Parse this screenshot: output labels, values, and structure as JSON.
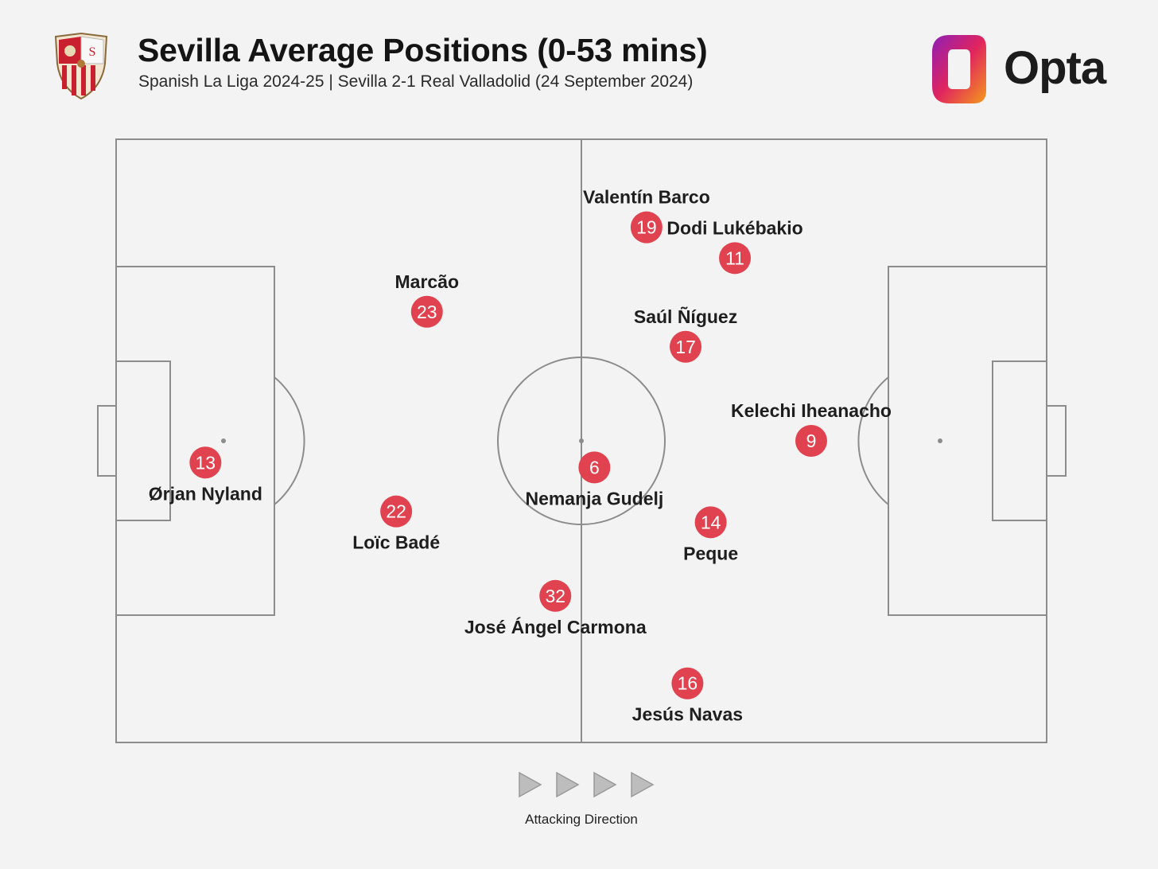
{
  "header": {
    "title": "Sevilla Average Positions (0-53 mins)",
    "subtitle": "Spanish La Liga 2024-25 | Sevilla 2-1 Real Valladolid (24 September 2024)",
    "brand": "Opta",
    "crest_icon": "sevilla-crest-icon"
  },
  "legend": {
    "label": "Attacking Direction"
  },
  "colors": {
    "background": "#f3f3f3",
    "pitch_lines": "#8c8c8c",
    "marker": "#e0434f",
    "marker_text": "#ffffff",
    "label": "#1e1e1e",
    "arrows": "#bdbdbd"
  },
  "chart_data": {
    "type": "scatter",
    "title": "Sevilla Average Positions (0-53 mins)",
    "subtitle": "Spanish La Liga 2024-25 | Sevilla 2-1 Real Valladolid (24 September 2024)",
    "xlim": [
      0,
      100
    ],
    "ylim": [
      0,
      100
    ],
    "attacking_direction": "left-to-right",
    "points": [
      {
        "number": "19",
        "name": "Valentín Barco",
        "x": 57.0,
        "y": 85.4,
        "label_pos": "above"
      },
      {
        "number": "11",
        "name": "Dodi Lukébakio",
        "x": 66.5,
        "y": 80.3,
        "label_pos": "above"
      },
      {
        "number": "23",
        "name": "Marcão",
        "x": 33.4,
        "y": 71.4,
        "label_pos": "above"
      },
      {
        "number": "17",
        "name": "Saúl Ñíguez",
        "x": 61.2,
        "y": 65.6,
        "label_pos": "above"
      },
      {
        "number": "9",
        "name": "Kelechi Iheanacho",
        "x": 74.7,
        "y": 50.0,
        "label_pos": "above"
      },
      {
        "number": "13",
        "name": "Ørjan Nyland",
        "x": 9.6,
        "y": 46.4,
        "label_pos": "below"
      },
      {
        "number": "6",
        "name": "Nemanja Gudelj",
        "x": 51.4,
        "y": 45.6,
        "label_pos": "below"
      },
      {
        "number": "22",
        "name": "Loïc Badé",
        "x": 30.1,
        "y": 38.3,
        "label_pos": "below"
      },
      {
        "number": "14",
        "name": "Peque",
        "x": 63.9,
        "y": 36.5,
        "label_pos": "below"
      },
      {
        "number": "32",
        "name": "José Ángel Carmona",
        "x": 47.2,
        "y": 24.3,
        "label_pos": "below"
      },
      {
        "number": "16",
        "name": "Jesús Navas",
        "x": 61.4,
        "y": 9.8,
        "label_pos": "below"
      }
    ]
  }
}
